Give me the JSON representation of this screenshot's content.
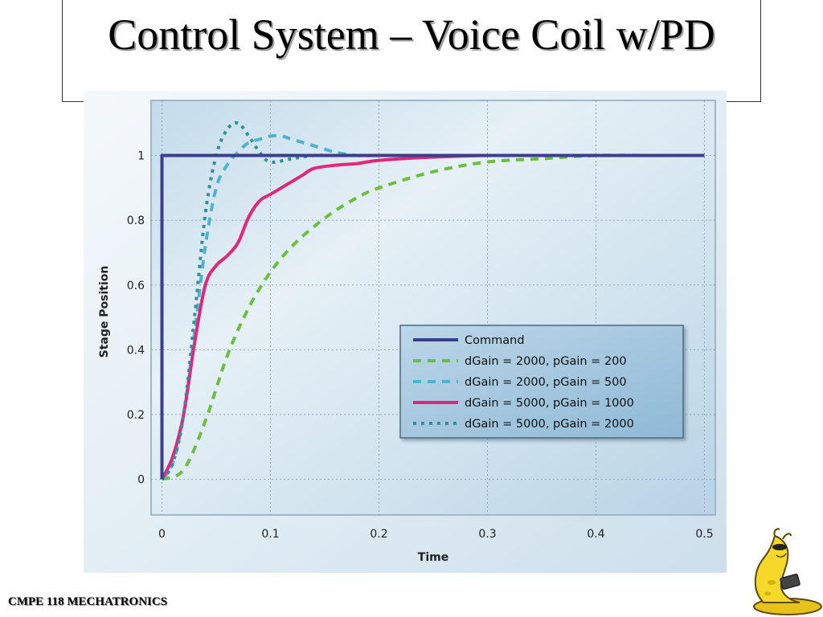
{
  "slide": {
    "title": "Control System – Voice Coil w/PD",
    "footer": "CMPE 118 MECHATRONICS"
  },
  "colors": {
    "command": "#3b3d8f",
    "green": "#6cbf3a",
    "cyan": "#4fb3cf",
    "magenta": "#e4267a",
    "teal": "#2f8f9d",
    "plot_bg": "#d5e6f1"
  },
  "icons": [
    "banana-slug-mascot-icon"
  ],
  "chart_data": {
    "type": "line",
    "title": "",
    "xlabel": "Time",
    "ylabel": "Stage Position",
    "xlim": [
      -0.01,
      0.51
    ],
    "ylim": [
      -0.11,
      1.17
    ],
    "xticks": [
      "0",
      "0.1",
      "0.2",
      "0.3",
      "0.4",
      "0.5"
    ],
    "xtick_values": [
      0,
      0.1,
      0.2,
      0.3,
      0.4,
      0.5
    ],
    "yticks": [
      "0",
      "0.2",
      "0.4",
      "0.6",
      "0.8",
      "1"
    ],
    "ytick_values": [
      0,
      0.2,
      0.4,
      0.6,
      0.8,
      1
    ],
    "grid": true,
    "legend_position": "lower-right",
    "series": [
      {
        "name": "Command",
        "style": "solid",
        "x": [
          0,
          0,
          0.5
        ],
        "y": [
          0,
          1,
          1
        ]
      },
      {
        "name": "dGain = 2000, pGain = 200",
        "style": "dashed",
        "x": [
          0,
          0.02,
          0.04,
          0.06,
          0.08,
          0.1,
          0.12,
          0.14,
          0.16,
          0.18,
          0.2,
          0.25,
          0.3,
          0.35,
          0.4,
          0.45,
          0.5
        ],
        "y": [
          0,
          0.03,
          0.18,
          0.38,
          0.53,
          0.64,
          0.72,
          0.78,
          0.83,
          0.87,
          0.9,
          0.95,
          0.98,
          0.99,
          1.0,
          1.0,
          1.0
        ]
      },
      {
        "name": "dGain = 2000, pGain = 500",
        "style": "dashed",
        "x": [
          0,
          0.01,
          0.02,
          0.03,
          0.04,
          0.05,
          0.06,
          0.07,
          0.08,
          0.09,
          0.1,
          0.11,
          0.12,
          0.14,
          0.16,
          0.18,
          0.2,
          0.25,
          0.3,
          0.4,
          0.5
        ],
        "y": [
          0,
          0.05,
          0.2,
          0.45,
          0.72,
          0.9,
          0.97,
          1.01,
          1.04,
          1.05,
          1.06,
          1.06,
          1.05,
          1.03,
          1.01,
          1.0,
          1.0,
          1.0,
          1.0,
          1.0,
          1.0
        ]
      },
      {
        "name": "dGain = 5000, pGain = 1000",
        "style": "solid",
        "x": [
          0,
          0.01,
          0.02,
          0.03,
          0.04,
          0.05,
          0.06,
          0.07,
          0.08,
          0.09,
          0.1,
          0.11,
          0.12,
          0.13,
          0.14,
          0.16,
          0.18,
          0.2,
          0.25,
          0.3,
          0.4,
          0.5
        ],
        "y": [
          0,
          0.07,
          0.2,
          0.42,
          0.6,
          0.66,
          0.69,
          0.73,
          0.81,
          0.86,
          0.88,
          0.9,
          0.92,
          0.94,
          0.96,
          0.97,
          0.975,
          0.985,
          0.995,
          1.0,
          1.0,
          1.0
        ]
      },
      {
        "name": "dGain = 5000, pGain = 2000",
        "style": "dotted",
        "x": [
          0,
          0.01,
          0.02,
          0.03,
          0.04,
          0.05,
          0.06,
          0.07,
          0.08,
          0.09,
          0.1,
          0.12,
          0.14,
          0.16,
          0.18,
          0.2,
          0.25,
          0.3,
          0.4,
          0.5
        ],
        "y": [
          0,
          0.05,
          0.2,
          0.5,
          0.82,
          1.0,
          1.08,
          1.1,
          1.06,
          1.01,
          0.98,
          0.99,
          1.0,
          1.0,
          1.0,
          1.0,
          1.0,
          1.0,
          1.0,
          1.0
        ]
      }
    ]
  }
}
